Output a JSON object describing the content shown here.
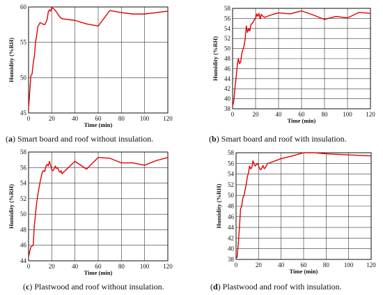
{
  "colors": {
    "series": "#e00000",
    "grid": "#333333"
  },
  "chart_data": [
    {
      "type": "line",
      "caption_letter": "a",
      "caption_text": "Smart board and roof without insulation.",
      "xlabel": "Time (min)",
      "ylabel": "Humidity (%RH)",
      "xlim": [
        0,
        120
      ],
      "ylim": [
        45,
        60
      ],
      "xticks": [
        0,
        20,
        40,
        60,
        80,
        100,
        120
      ],
      "yticks": [
        45,
        50,
        55,
        60
      ],
      "grid": true,
      "x": [
        0,
        1,
        2,
        3,
        4,
        5,
        6,
        7,
        8,
        9,
        10,
        12,
        14,
        16,
        17,
        18,
        19,
        20,
        21,
        22,
        24,
        26,
        28,
        30,
        40,
        50,
        60,
        70,
        80,
        90,
        100,
        110,
        120
      ],
      "y": [
        45.5,
        48,
        50.3,
        50.5,
        52,
        53,
        55,
        56,
        57.2,
        57.5,
        57.8,
        57.6,
        57.5,
        58.2,
        59.3,
        59.6,
        59.4,
        59.9,
        59.8,
        59.7,
        59.3,
        58.8,
        58.4,
        58.3,
        58.1,
        57.6,
        57.3,
        59.5,
        59.2,
        59.0,
        59.0,
        59.2,
        59.4
      ]
    },
    {
      "type": "line",
      "caption_letter": "b",
      "caption_text": "Smart board and roof with insulation.",
      "xlabel": "Time (min)",
      "ylabel": "Humidity (%RH)",
      "xlim": [
        0,
        120
      ],
      "ylim": [
        38,
        58
      ],
      "xticks": [
        0,
        20,
        40,
        60,
        80,
        100,
        120
      ],
      "yticks": [
        38,
        40,
        42,
        44,
        46,
        48,
        50,
        52,
        54,
        56,
        58
      ],
      "grid": true,
      "x": [
        0,
        1,
        2,
        3,
        4,
        5,
        6,
        7,
        8,
        9,
        10,
        11,
        12,
        13,
        14,
        15,
        16,
        17,
        18,
        19,
        20,
        21,
        22,
        23,
        24,
        25,
        26,
        28,
        30,
        35,
        40,
        50,
        60,
        70,
        80,
        90,
        100,
        110,
        120
      ],
      "y": [
        38.5,
        39.5,
        42,
        44,
        46.5,
        48,
        47,
        47.3,
        49,
        49.8,
        50.5,
        52,
        54.5,
        53.2,
        54,
        53.5,
        54.8,
        55,
        55.3,
        55.8,
        56,
        56.9,
        56.4,
        57,
        55.9,
        56.8,
        56.5,
        56.2,
        56.4,
        56.8,
        57.1,
        56.9,
        57.5,
        56.7,
        55.8,
        56.4,
        56.1,
        57.2,
        57.0
      ]
    },
    {
      "type": "line",
      "caption_letter": "c",
      "caption_text": "Plastwood and roof without insulation.",
      "xlabel": "Time (min)",
      "ylabel": "Humidity (%RH)",
      "xlim": [
        0,
        120
      ],
      "ylim": [
        44,
        58
      ],
      "xticks": [
        0,
        20,
        40,
        60,
        80,
        100,
        120
      ],
      "yticks": [
        44,
        46,
        48,
        50,
        52,
        54,
        56,
        58
      ],
      "grid": true,
      "x": [
        0,
        1,
        2,
        4,
        5,
        6,
        7,
        8,
        10,
        12,
        13,
        14,
        15,
        16,
        17,
        18,
        19,
        20,
        21,
        22,
        23,
        24,
        25,
        26,
        27,
        28,
        29,
        30,
        40,
        50,
        60,
        70,
        80,
        90,
        100,
        110,
        120
      ],
      "y": [
        44.5,
        45.2,
        45.8,
        46,
        48.5,
        50,
        51.5,
        52.5,
        54.2,
        55.5,
        55.6,
        55.5,
        56.2,
        56.4,
        56.2,
        56.8,
        56.3,
        55.7,
        55.6,
        55.8,
        56.2,
        55.9,
        56.0,
        55.6,
        55.4,
        55.6,
        55.2,
        55.4,
        56.8,
        55.8,
        57.3,
        57.2,
        56.6,
        56.6,
        56.3,
        56.9,
        57.3
      ]
    },
    {
      "type": "line",
      "caption_letter": "d",
      "caption_text": "Plastwood and roof with insulation.",
      "xlabel": "Time (min)",
      "ylabel": "Humidity (%RH)",
      "xlim": [
        0,
        120
      ],
      "ylim": [
        38,
        58
      ],
      "xticks": [
        0,
        20,
        40,
        60,
        80,
        100,
        120
      ],
      "yticks": [
        38,
        40,
        42,
        44,
        46,
        48,
        50,
        52,
        54,
        56,
        58
      ],
      "grid": true,
      "x": [
        0,
        1,
        2,
        3,
        4,
        5,
        6,
        7,
        8,
        9,
        10,
        11,
        12,
        13,
        14,
        15,
        16,
        17,
        18,
        19,
        20,
        21,
        22,
        23,
        24,
        25,
        26,
        28,
        30,
        40,
        50,
        60,
        70,
        80,
        90,
        100,
        110,
        120
      ],
      "y": [
        38.2,
        38.5,
        41,
        44,
        47.5,
        48,
        49.5,
        50,
        51,
        52,
        53.5,
        54.2,
        55.5,
        55,
        55.2,
        56.5,
        55.8,
        55.5,
        55.8,
        56,
        55.5,
        55,
        54.8,
        55.2,
        55.6,
        55,
        55.2,
        56,
        56.1,
        56.9,
        57.4,
        58.0,
        58.0,
        57.8,
        57.7,
        57.6,
        57.5,
        57.4
      ]
    }
  ]
}
